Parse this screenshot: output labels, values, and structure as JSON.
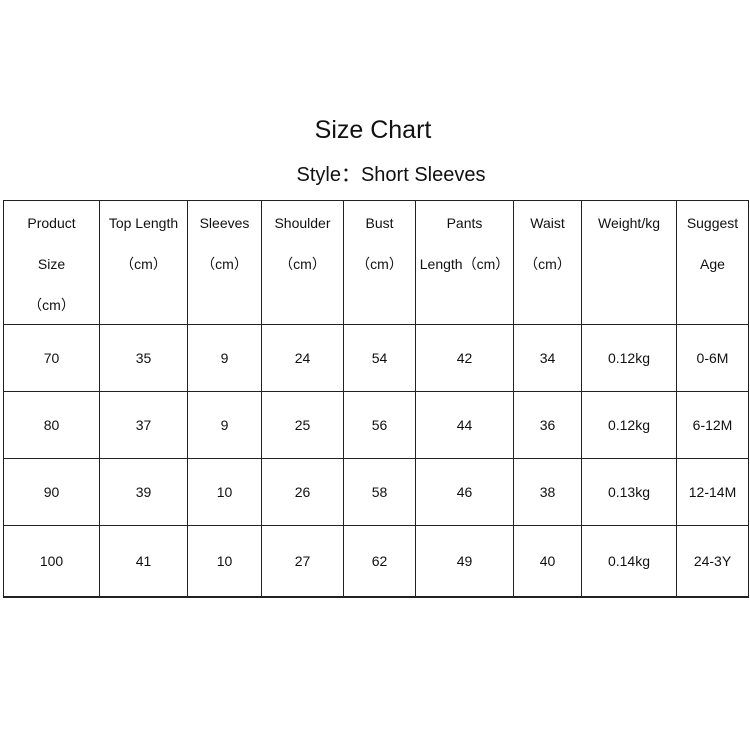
{
  "title": "Size Chart",
  "subtitle": "Style：Short Sleeves",
  "table": {
    "headers": [
      [
        "Product",
        "Size",
        "（cm）"
      ],
      [
        "Top Length",
        "（cm）"
      ],
      [
        "Sleeves",
        "（cm）"
      ],
      [
        "Shoulder",
        "（cm）"
      ],
      [
        "Bust",
        "（cm）"
      ],
      [
        "Pants",
        "Length（cm）"
      ],
      [
        "Waist",
        "（cm）"
      ],
      [
        "Weight/kg"
      ],
      [
        "Suggest",
        "Age"
      ]
    ],
    "rows": [
      [
        "70",
        "35",
        "9",
        "24",
        "54",
        "42",
        "34",
        "0.12kg",
        "0-6M"
      ],
      [
        "80",
        "37",
        "9",
        "25",
        "56",
        "44",
        "36",
        "0.12kg",
        "6-12M"
      ],
      [
        "90",
        "39",
        "10",
        "26",
        "58",
        "46",
        "38",
        "0.13kg",
        "12-14M"
      ],
      [
        "100",
        "41",
        "10",
        "27",
        "62",
        "49",
        "40",
        "0.14kg",
        "24-3Y"
      ]
    ]
  }
}
